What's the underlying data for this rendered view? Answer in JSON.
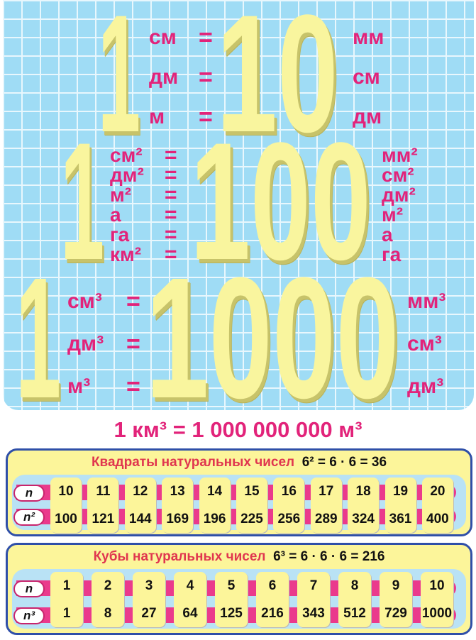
{
  "length": {
    "one": "1",
    "value": "10",
    "left": [
      "см",
      "дм",
      "м"
    ],
    "right": [
      "мм",
      "см",
      "дм"
    ],
    "eq": "="
  },
  "area": {
    "one": "1",
    "value": "100",
    "left": [
      "см²",
      "дм²",
      "м²",
      "а",
      "га",
      "км²"
    ],
    "right": [
      "мм²",
      "см²",
      "дм²",
      "м²",
      "а",
      "га"
    ],
    "eq": "="
  },
  "volume": {
    "one": "1",
    "value": "1000",
    "left": [
      "см³",
      "дм³",
      "м³"
    ],
    "right": [
      "мм³",
      "см³",
      "дм³"
    ],
    "eq": "="
  },
  "formula": "1 км³ = 1 000 000 000 м³",
  "squares": {
    "title": "Квадраты натуральных чисел",
    "example": "6² = 6 · 6 = 36",
    "row1_label": "n",
    "row2_label": "n²",
    "n": [
      "10",
      "11",
      "12",
      "13",
      "14",
      "15",
      "16",
      "17",
      "18",
      "19",
      "20"
    ],
    "values": [
      "100",
      "121",
      "144",
      "169",
      "196",
      "225",
      "256",
      "289",
      "324",
      "361",
      "400"
    ]
  },
  "cubes": {
    "title": "Кубы натуральных чисел",
    "example": "6³ = 6 · 6 · 6 = 216",
    "row1_label": "n",
    "row2_label": "n³",
    "n": [
      "1",
      "2",
      "3",
      "4",
      "5",
      "6",
      "7",
      "8",
      "9",
      "10"
    ],
    "values": [
      "1",
      "8",
      "27",
      "64",
      "125",
      "216",
      "343",
      "512",
      "729",
      "1000"
    ]
  },
  "colors": {
    "background": "#9fdcf5",
    "numerals": "#f9f59e",
    "units": "#e2237a",
    "table_fill": "#fcf59a",
    "table_border": "#2f4fa8"
  }
}
